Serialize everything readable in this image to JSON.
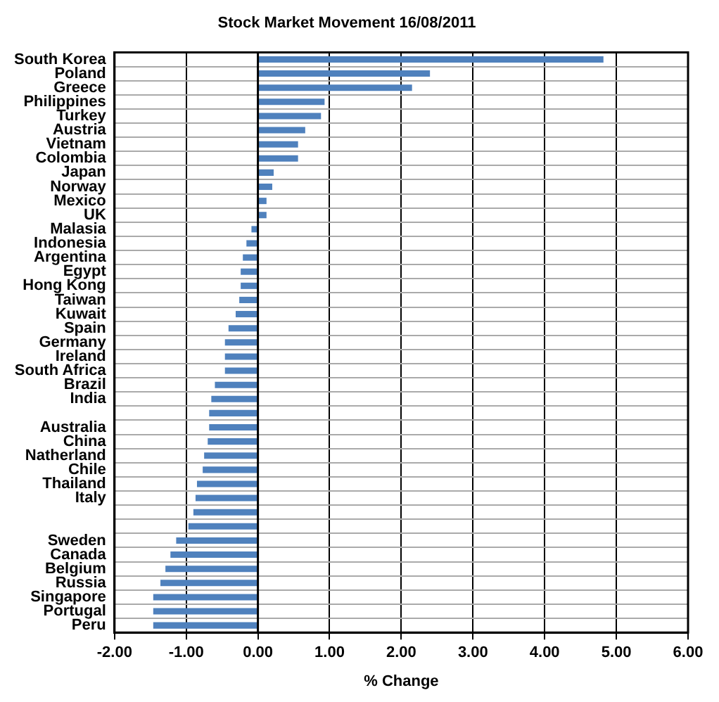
{
  "chart_data": {
    "type": "bar",
    "orientation": "horizontal",
    "title": "Stock Market Movement 16/08/2011",
    "xlabel": "% Change",
    "categories": [
      "South Korea",
      "Poland",
      "Greece",
      "Philippines",
      "Turkey",
      "Austria",
      "Vietnam",
      "Colombia",
      "Japan",
      "Norway",
      "Mexico",
      "UK",
      "Malasia",
      "Indonesia",
      "Argentina",
      "Egypt",
      "Hong Kong",
      "Taiwan",
      "Kuwait",
      "Spain",
      "Germany",
      "Ireland",
      "South Africa",
      "Brazil",
      "India",
      null,
      "Australia",
      "China",
      "Natherland",
      "Chile",
      "Thailand",
      "Italy",
      null,
      null,
      "Sweden",
      "Canada",
      "Belgium",
      "Russia",
      "Singapore",
      "Portugal",
      "Peru"
    ],
    "values": [
      4.82,
      2.4,
      2.15,
      0.93,
      0.88,
      0.66,
      0.56,
      0.56,
      0.22,
      0.2,
      0.12,
      0.12,
      -0.09,
      -0.16,
      -0.21,
      -0.24,
      -0.24,
      -0.26,
      -0.31,
      -0.41,
      -0.46,
      -0.46,
      -0.46,
      -0.6,
      -0.65,
      -0.68,
      -0.68,
      -0.7,
      -0.75,
      -0.77,
      -0.85,
      -0.87,
      -0.9,
      -0.97,
      -1.14,
      -1.22,
      -1.29,
      -1.36,
      -1.46,
      -1.46,
      -1.46
    ],
    "color": "#4f81bd",
    "xlim": [
      -2,
      6
    ],
    "xticks": [
      {
        "value": -2,
        "label": "-2.00"
      },
      {
        "value": -1,
        "label": "-1.00"
      },
      {
        "value": 0,
        "label": "0.00"
      },
      {
        "value": 1,
        "label": "1.00"
      },
      {
        "value": 2,
        "label": "2.00"
      },
      {
        "value": 3,
        "label": "3.00"
      },
      {
        "value": 4,
        "label": "4.00"
      },
      {
        "value": 5,
        "label": "5.00"
      },
      {
        "value": 6,
        "label": "6.00"
      }
    ],
    "grid": true,
    "legend": false
  }
}
